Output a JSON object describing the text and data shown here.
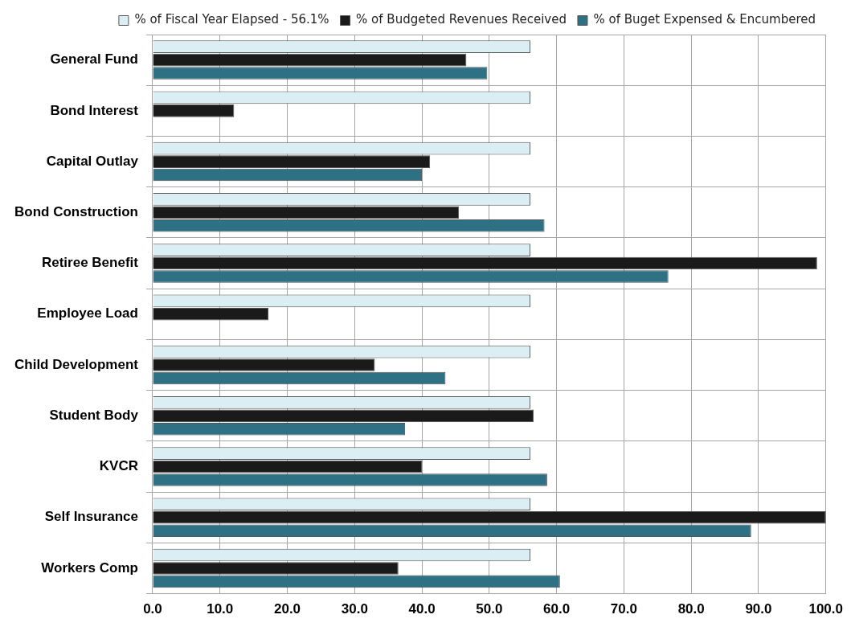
{
  "chart_data": {
    "type": "bar",
    "orientation": "horizontal",
    "categories": [
      "General Fund",
      "Bond Interest",
      "Capital Outlay",
      "Bond Construction",
      "Retiree Benefit",
      "Employee Load",
      "Child Development",
      "Student Body",
      "KVCR",
      "Self Insurance",
      "Workers Comp"
    ],
    "series": [
      {
        "name": "% of Fiscal Year Elapsed - 56.1%",
        "color": "#dbeef3",
        "values": [
          56.1,
          56.1,
          56.1,
          56.1,
          56.1,
          56.1,
          56.1,
          56.1,
          56.1,
          56.1,
          56.1
        ]
      },
      {
        "name": "% of Budgeted Revenues Received",
        "color": "#1a1a1a",
        "values": [
          46.6,
          12.1,
          41.2,
          45.5,
          98.7,
          17.2,
          33.0,
          56.6,
          40.0,
          100.0,
          36.5
        ]
      },
      {
        "name": "% of Buget Expensed & Encumbered",
        "color": "#2f7184",
        "values": [
          49.7,
          null,
          40.0,
          58.2,
          76.6,
          null,
          43.5,
          37.5,
          58.6,
          88.9,
          60.5
        ]
      }
    ],
    "xlim": [
      0,
      100
    ],
    "xticks": [
      {
        "value": 0,
        "label": "0.0"
      },
      {
        "value": 10,
        "label": "10.0"
      },
      {
        "value": 20,
        "label": "20.0"
      },
      {
        "value": 30,
        "label": "30.0"
      },
      {
        "value": 40,
        "label": "40.0"
      },
      {
        "value": 50,
        "label": "50.0"
      },
      {
        "value": 60,
        "label": "60.0"
      },
      {
        "value": 70,
        "label": "70.0"
      },
      {
        "value": 80,
        "label": "80.0"
      },
      {
        "value": 90,
        "label": "90.0"
      },
      {
        "value": 100,
        "label": "100.0"
      }
    ],
    "grid": true,
    "legend": "top right"
  }
}
